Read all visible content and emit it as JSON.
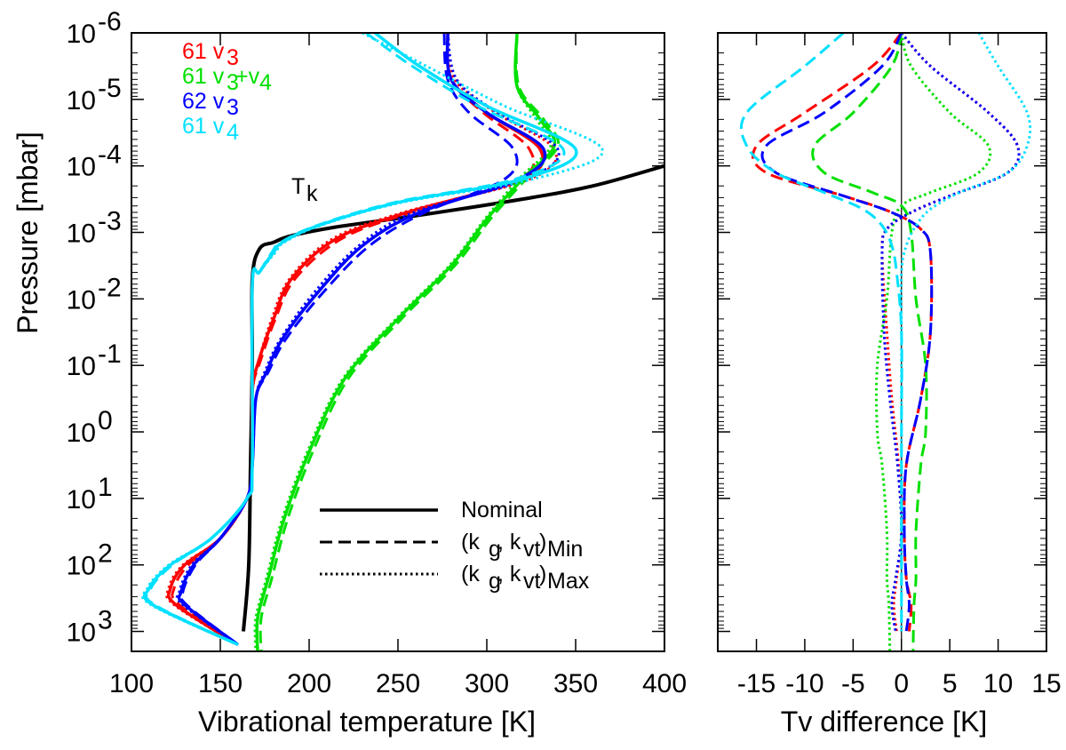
{
  "chart_data": [
    {
      "type": "line",
      "panel": "left",
      "xlabel": "Vibrational temperature [K]",
      "ylabel": "Pressure [mbar]",
      "xlim": [
        100,
        400
      ],
      "ylim_log10": [
        -6,
        3.3
      ],
      "yscale": "log",
      "y_inverted": true,
      "xticks": [
        "100",
        "150",
        "200",
        "250",
        "300",
        "350",
        "400"
      ],
      "yticks": [
        {
          "base": "10",
          "exp": "-6"
        },
        {
          "base": "10",
          "exp": "-5"
        },
        {
          "base": "10",
          "exp": "-4"
        },
        {
          "base": "10",
          "exp": "-3"
        },
        {
          "base": "10",
          "exp": "-2"
        },
        {
          "base": "10",
          "exp": "-1"
        },
        {
          "base": "10",
          "exp": "0"
        },
        {
          "base": "10",
          "exp": "1"
        },
        {
          "base": "10",
          "exp": "2"
        },
        {
          "base": "10",
          "exp": "3"
        }
      ],
      "kinetic_label": {
        "main": "T",
        "sub": "k"
      },
      "kinetic": {
        "x": [
          163,
          166,
          167,
          168,
          168,
          172,
          180,
          190,
          215,
          260,
          320,
          360,
          400
        ],
        "y": [
          3.0,
          2.0,
          0.5,
          -1.0,
          -2.3,
          -2.75,
          -2.85,
          -2.95,
          -3.08,
          -3.25,
          -3.5,
          -3.7,
          -4.0
        ]
      },
      "series_labels": [
        {
          "text": "61 v",
          "sub": "3",
          "sup_extra": "",
          "color": "#ff0000"
        },
        {
          "text": "61 v",
          "sub": "3",
          "sup_extra": "+v",
          "sub2": "4",
          "color": "#00e000"
        },
        {
          "text": "62 v",
          "sub": "3",
          "sup_extra": "",
          "color": "#0000ff"
        },
        {
          "text": "61 v",
          "sub": "4",
          "sup_extra": "",
          "color": "#00e0ff"
        }
      ],
      "series": [
        {
          "name": "61 v3",
          "color": "#ff0000",
          "nominal": {
            "x": [
              278,
              280,
              300,
              330,
              320,
              255,
              215,
              190,
              180,
              172,
              168,
              168,
              165,
              150,
              130,
              122,
              125,
              160
            ],
            "y": [
              -6.0,
              -5.3,
              -4.8,
              -4.25,
              -3.8,
              -3.3,
              -2.9,
              -2.3,
              -1.7,
              -1.1,
              -0.6,
              0.5,
              1.0,
              1.6,
              2.0,
              2.35,
              2.6,
              3.2
            ]
          },
          "min": {
            "x": [
              278,
              280,
              298,
              324,
              318,
              257,
              218,
              192,
              181,
              173,
              168,
              168,
              165,
              150,
              132,
              124,
              127,
              160
            ],
            "y": [
              -6.0,
              -5.3,
              -4.8,
              -4.25,
              -3.8,
              -3.3,
              -2.9,
              -2.3,
              -1.7,
              -1.1,
              -0.6,
              0.5,
              1.0,
              1.6,
              2.0,
              2.35,
              2.6,
              3.2
            ]
          },
          "max": {
            "x": [
              278,
              282,
              305,
              338,
              324,
              253,
              213,
              189,
              179,
              172,
              168,
              168,
              165,
              150,
              129,
              121,
              124,
              160
            ],
            "y": [
              -6.0,
              -5.3,
              -4.8,
              -4.25,
              -3.8,
              -3.3,
              -2.9,
              -2.3,
              -1.7,
              -1.1,
              -0.6,
              0.5,
              1.0,
              1.6,
              2.0,
              2.35,
              2.6,
              3.2
            ]
          }
        },
        {
          "name": "61 v3+v4",
          "color": "#00e000",
          "nominal": {
            "x": [
              317,
              317,
              330,
              338,
              320,
              300,
              280,
              250,
              220,
              200,
              186,
              177,
              171,
              171
            ],
            "y": [
              -6.0,
              -5.2,
              -4.7,
              -4.3,
              -3.8,
              -3.2,
              -2.5,
              -1.7,
              -0.8,
              0.3,
              1.3,
              2.2,
              2.8,
              3.3
            ]
          },
          "min": {
            "x": [
              317,
              318,
              332,
              340,
              322,
              302,
              282,
              252,
              222,
              202,
              188,
              179,
              173,
              173
            ],
            "y": [
              -6.0,
              -5.2,
              -4.7,
              -4.3,
              -3.8,
              -3.2,
              -2.5,
              -1.7,
              -0.8,
              0.3,
              1.3,
              2.2,
              2.8,
              3.3
            ]
          },
          "max": {
            "x": [
              317,
              317,
              328,
              336,
              318,
              299,
              279,
              249,
              219,
              199,
              185,
              176,
              170,
              170
            ],
            "y": [
              -6.0,
              -5.2,
              -4.7,
              -4.3,
              -3.8,
              -3.2,
              -2.5,
              -1.7,
              -0.8,
              0.3,
              1.3,
              2.2,
              2.8,
              3.3
            ]
          }
        },
        {
          "name": "62 v3",
          "color": "#0000ff",
          "nominal": {
            "x": [
              278,
              280,
              300,
              332,
              318,
              262,
              230,
              205,
              185,
              176,
              170,
              168,
              165,
              150,
              135,
              128,
              130,
              160
            ],
            "y": [
              -6.0,
              -5.3,
              -4.8,
              -4.25,
              -3.8,
              -3.3,
              -2.8,
              -2.1,
              -1.4,
              -0.9,
              -0.5,
              0.5,
              1.0,
              1.6,
              2.0,
              2.4,
              2.6,
              3.2
            ]
          },
          "min": {
            "x": [
              276,
              278,
              290,
              315,
              310,
              265,
              234,
              208,
              187,
              177,
              170,
              168,
              165,
              150,
              136,
              129,
              131,
              160
            ],
            "y": [
              -6.0,
              -5.3,
              -4.8,
              -4.25,
              -3.8,
              -3.3,
              -2.8,
              -2.1,
              -1.4,
              -0.9,
              -0.5,
              0.5,
              1.0,
              1.6,
              2.0,
              2.4,
              2.6,
              3.2
            ]
          },
          "max": {
            "x": [
              278,
              283,
              306,
              340,
              322,
              259,
              228,
              203,
              184,
              175,
              170,
              168,
              165,
              150,
              134,
              127,
              129,
              160
            ],
            "y": [
              -6.0,
              -5.3,
              -4.8,
              -4.25,
              -3.8,
              -3.3,
              -2.8,
              -2.1,
              -1.4,
              -0.9,
              -0.5,
              0.5,
              1.0,
              1.6,
              2.0,
              2.4,
              2.6,
              3.2
            ]
          }
        },
        {
          "name": "61 v4",
          "color": "#00e0ff",
          "nominal": {
            "x": [
              237,
              262,
              300,
              350,
              320,
              250,
              205,
              185,
              180,
              172,
              168,
              168,
              165,
              145,
              122,
              110,
              112,
              160
            ],
            "y": [
              -6.0,
              -5.5,
              -4.9,
              -4.25,
              -3.8,
              -3.45,
              -3.1,
              -2.85,
              -2.7,
              -2.4,
              -2.2,
              0.5,
              1.0,
              1.6,
              2.0,
              2.35,
              2.6,
              3.2
            ]
          },
          "min": {
            "x": [
              232,
              258,
              295,
              343,
              316,
              248,
              204,
              184,
              179,
              172,
              168,
              168,
              165,
              145,
              123,
              111,
              113,
              160
            ],
            "y": [
              -6.0,
              -5.5,
              -4.9,
              -4.25,
              -3.8,
              -3.45,
              -3.1,
              -2.85,
              -2.7,
              -2.4,
              -2.2,
              0.5,
              1.0,
              1.6,
              2.0,
              2.35,
              2.6,
              3.2
            ]
          },
          "max": {
            "x": [
              230,
              266,
              310,
              365,
              326,
              252,
              206,
              186,
              181,
              172,
              168,
              168,
              165,
              145,
              121,
              109,
              111,
              160
            ],
            "y": [
              -6.0,
              -5.5,
              -4.9,
              -4.25,
              -3.8,
              -3.45,
              -3.1,
              -2.85,
              -2.7,
              -2.4,
              -2.2,
              0.5,
              1.0,
              1.6,
              2.0,
              2.35,
              2.6,
              3.2
            ]
          }
        }
      ],
      "legend": {
        "placement": "bottom-right",
        "entries": [
          {
            "style": "solid",
            "label": "Nominal"
          },
          {
            "style": "dashed",
            "label_main": "(k",
            "g": "g",
            "mid": ", k",
            "vt": "vt",
            "close": ")",
            "sub": "Min"
          },
          {
            "style": "dotted",
            "label_main": "(k",
            "g": "g",
            "mid": ", k",
            "vt": "vt",
            "close": ")",
            "sub": "Max"
          }
        ]
      }
    },
    {
      "type": "line",
      "panel": "right",
      "xlabel": "Tv difference [K]",
      "xlim": [
        -19,
        15
      ],
      "ylim_log10": [
        -6,
        3.3
      ],
      "yscale": "log",
      "y_inverted": true,
      "xticks": [
        "-15",
        "-10",
        "-5",
        "0",
        "5",
        "10",
        "15"
      ],
      "zero_line": true,
      "series": [
        {
          "name": "61 v3 min",
          "color": "#ff0000",
          "style": "dashed",
          "x": [
            0,
            -3,
            -10,
            -15,
            -14,
            -6,
            -1,
            2,
            3,
            3,
            2,
            0.5,
            0.3,
            0.5,
            1,
            0.8
          ],
          "y": [
            -6.0,
            -5.5,
            -4.8,
            -4.3,
            -3.9,
            -3.55,
            -3.3,
            -3.05,
            -2.7,
            -1.5,
            -0.5,
            0.5,
            1.5,
            2.2,
            2.6,
            3.0
          ]
        },
        {
          "name": "61 v3 max",
          "color": "#ff0000",
          "style": "dotted",
          "x": [
            0,
            3,
            9,
            12,
            11,
            5,
            1,
            -1.5,
            -2,
            -1.5,
            -1,
            -0.3,
            0,
            -0.5,
            -0.8,
            -0.5
          ],
          "y": [
            -6.0,
            -5.5,
            -4.8,
            -4.3,
            -3.9,
            -3.55,
            -3.3,
            -3.05,
            -2.7,
            -1.5,
            -0.5,
            0.5,
            1.5,
            2.2,
            2.6,
            3.0
          ]
        },
        {
          "name": "61 v3+v4 min",
          "color": "#00e000",
          "style": "dashed",
          "x": [
            0,
            -1,
            -5,
            -9,
            -8,
            -3,
            0,
            1,
            1.5,
            2.5,
            2.5,
            2,
            1.5,
            1.5,
            1.3,
            1.2
          ],
          "y": [
            -6.0,
            -5.5,
            -4.8,
            -4.3,
            -3.9,
            -3.6,
            -3.4,
            -3.0,
            -2.0,
            -1.0,
            0.0,
            0.5,
            1.5,
            2.2,
            2.6,
            3.3
          ]
        },
        {
          "name": "61 v3+v4 max",
          "color": "#00e000",
          "style": "dotted",
          "x": [
            0,
            1,
            5,
            9,
            8,
            3,
            0,
            -1,
            -1.5,
            -2.5,
            -2.5,
            -2,
            -1.5,
            -1.5,
            -1.3,
            -1.2
          ],
          "y": [
            -6.0,
            -5.5,
            -4.8,
            -4.3,
            -3.9,
            -3.6,
            -3.4,
            -3.0,
            -2.0,
            -1.0,
            0.0,
            0.5,
            1.5,
            2.2,
            2.6,
            3.3
          ]
        },
        {
          "name": "62 v3 min",
          "color": "#0000ff",
          "style": "dashed",
          "x": [
            0,
            -2,
            -8,
            -14,
            -13,
            -6,
            -1,
            2,
            3,
            3,
            2,
            0.5,
            0.3,
            0.5,
            0.8,
            0.5
          ],
          "y": [
            -6.0,
            -5.5,
            -4.8,
            -4.3,
            -3.9,
            -3.55,
            -3.3,
            -3.05,
            -2.7,
            -1.5,
            -0.5,
            0.5,
            1.5,
            2.2,
            2.6,
            3.0
          ]
        },
        {
          "name": "62 v3 max",
          "color": "#0000ff",
          "style": "dotted",
          "x": [
            0,
            3,
            9,
            12,
            11,
            5,
            1,
            -1.5,
            -2,
            -1.8,
            -1.2,
            -0.4,
            0,
            -0.6,
            -1,
            -0.6
          ],
          "y": [
            -6.0,
            -5.5,
            -4.8,
            -4.3,
            -3.9,
            -3.55,
            -3.3,
            -3.05,
            -2.7,
            -1.5,
            -0.5,
            0.5,
            1.5,
            2.2,
            2.6,
            3.0
          ]
        },
        {
          "name": "61 v4 min",
          "color": "#00e0ff",
          "style": "dashed",
          "x": [
            -6,
            -10,
            -16,
            -16,
            -13,
            -8,
            -4,
            -2,
            -1,
            -0.5,
            0,
            0,
            0,
            0
          ],
          "y": [
            -6.0,
            -5.5,
            -4.8,
            -4.3,
            -3.9,
            -3.6,
            -3.35,
            -3.1,
            -2.8,
            -2.4,
            -1.5,
            0.0,
            1.5,
            3.0
          ]
        },
        {
          "name": "61 v4 max",
          "color": "#00e0ff",
          "style": "dotted",
          "x": [
            8,
            10,
            13,
            13,
            11,
            6,
            3,
            1.5,
            0.5,
            0,
            0,
            0,
            0
          ],
          "y": [
            -6.0,
            -5.5,
            -4.8,
            -4.3,
            -3.9,
            -3.6,
            -3.35,
            -3.1,
            -2.8,
            -2.4,
            -1.5,
            0.0,
            3.0
          ]
        }
      ]
    }
  ]
}
